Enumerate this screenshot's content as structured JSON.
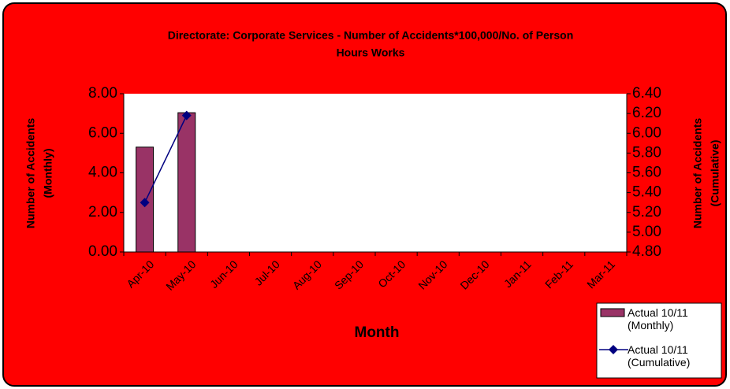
{
  "chart_data": {
    "type": "bar-line",
    "title": [
      "Directorate: Corporate Services - Number of Accidents*100,000/No. of Person",
      "Hours Works"
    ],
    "ylabel": [
      "Number of Accidents",
      "(Monthly)"
    ],
    "y2label": [
      "Number of Accidents",
      "(Cumulative)"
    ],
    "xlabel": "Month",
    "categories": [
      "Apr-10",
      "May-10",
      "Jun-10",
      "Jul-10",
      "Aug-10",
      "Sep-10",
      "Oct-10",
      "Nov-10",
      "Dec-10",
      "Jan-11",
      "Feb-11",
      "Mar-11"
    ],
    "series": [
      {
        "name": "Actual 10/11 (Monthly)",
        "type": "bar",
        "color": "#993366",
        "values": [
          5.3,
          7.04,
          null,
          null,
          null,
          null,
          null,
          null,
          null,
          null,
          null,
          null
        ]
      },
      {
        "name": "Actual 10/11 (Cumulative)",
        "type": "line",
        "color": "#000080",
        "axis": "y2",
        "values": [
          5.3,
          6.18,
          null,
          null,
          null,
          null,
          null,
          null,
          null,
          null,
          null,
          null
        ]
      }
    ],
    "ylim": [
      0,
      8
    ],
    "yticks": [
      {
        "value": 0,
        "label": "0.00"
      },
      {
        "value": 2,
        "label": "2.00"
      },
      {
        "value": 4,
        "label": "4.00"
      },
      {
        "value": 6,
        "label": "6.00"
      },
      {
        "value": 8,
        "label": "8.00"
      }
    ],
    "y2lim": [
      4.8,
      6.4
    ],
    "y2ticks": [
      {
        "value": 4.8,
        "label": "4.80"
      },
      {
        "value": 5.0,
        "label": "5.00"
      },
      {
        "value": 5.2,
        "label": "5.20"
      },
      {
        "value": 5.4,
        "label": "5.40"
      },
      {
        "value": 5.6,
        "label": "5.60"
      },
      {
        "value": 5.8,
        "label": "5.80"
      },
      {
        "value": 6.0,
        "label": "6.00"
      },
      {
        "value": 6.2,
        "label": "6.20"
      },
      {
        "value": 6.4,
        "label": "6.40"
      }
    ],
    "legend": "bottom-right"
  }
}
